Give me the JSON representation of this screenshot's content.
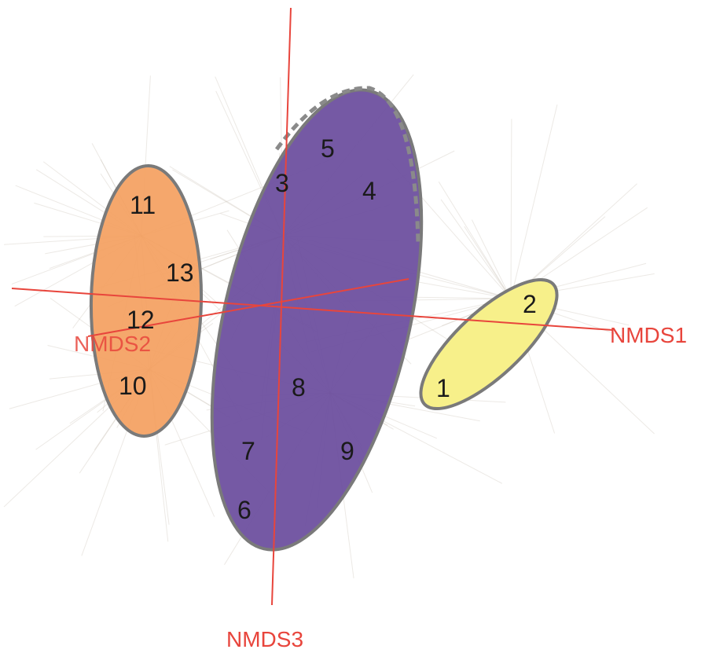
{
  "chart_data": {
    "type": "scatter",
    "projection": "3d",
    "axes": [
      {
        "name": "NMDS1",
        "color": "#e8453c"
      },
      {
        "name": "NMDS2",
        "color": "#e8453c"
      },
      {
        "name": "NMDS3",
        "color": "#e8453c"
      }
    ],
    "points": [
      {
        "label": "1"
      },
      {
        "label": "2"
      },
      {
        "label": "3"
      },
      {
        "label": "4"
      },
      {
        "label": "5"
      },
      {
        "label": "6"
      },
      {
        "label": "7"
      },
      {
        "label": "8"
      },
      {
        "label": "9"
      },
      {
        "label": "10"
      },
      {
        "label": "11"
      },
      {
        "label": "12"
      },
      {
        "label": "13"
      }
    ],
    "groups": [
      {
        "members": [
          "10",
          "11",
          "12",
          "13"
        ],
        "fill": "#f4a061",
        "border": "#7a7a7a",
        "border_style": "solid"
      },
      {
        "members": [
          "3",
          "4",
          "5",
          "6",
          "7",
          "8",
          "9"
        ],
        "fill": "#7458a2",
        "border": "#7a7a7a",
        "border_style": "dashed-top"
      },
      {
        "members": [
          "1",
          "2"
        ],
        "fill": "#f7f08a",
        "border": "#7a7a7a",
        "border_style": "solid"
      }
    ],
    "background_spider_lines": true,
    "grid": false,
    "legend": "none"
  }
}
